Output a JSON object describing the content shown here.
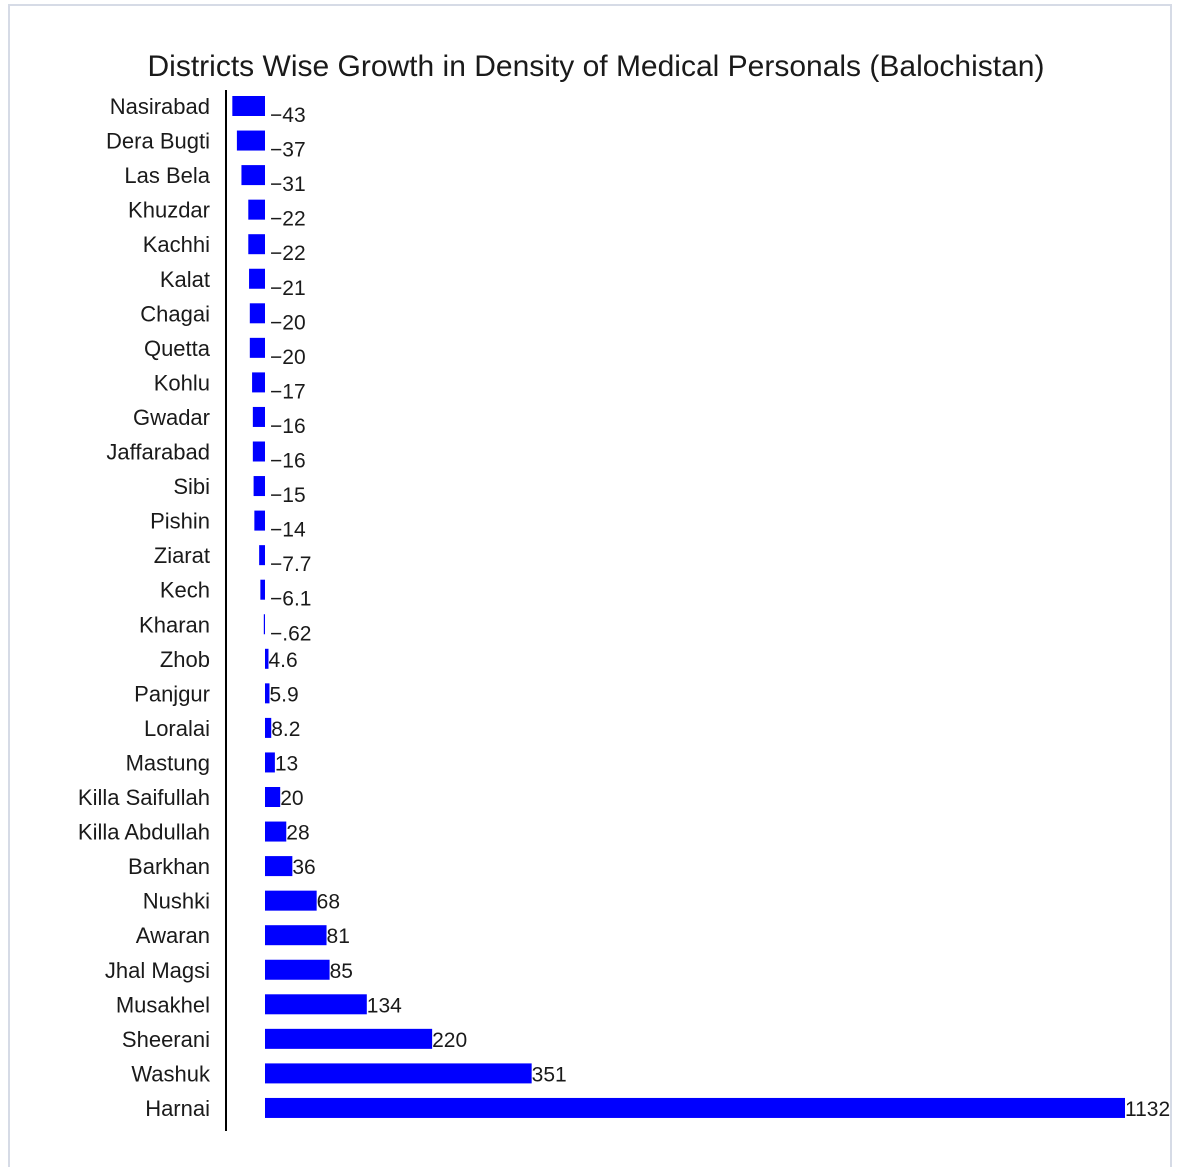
{
  "chart_data": {
    "type": "bar",
    "orientation": "horizontal",
    "title": "Districts Wise Growth in Density of Medical Personals (Balochistan)",
    "xlabel": "",
    "ylabel": "",
    "grid": false,
    "legend": "none",
    "bar_color": "#0000ff",
    "xlim": [
      -43,
      1132
    ],
    "categories": [
      "Nasirabad",
      "Dera Bugti",
      "Las Bela",
      "Khuzdar",
      "Kachhi",
      "Kalat",
      "Chagai",
      "Quetta",
      "Kohlu",
      "Gwadar",
      "Jaffarabad",
      "Sibi",
      "Pishin",
      "Ziarat",
      "Kech",
      "Kharan",
      "Zhob",
      "Panjgur",
      "Loralai",
      "Mastung",
      "Killa Saifullah",
      "Killa Abdullah",
      "Barkhan",
      "Nushki",
      "Awaran",
      "Jhal Magsi",
      "Musakhel",
      "Sheerani",
      "Washuk",
      "Harnai"
    ],
    "values": [
      -43,
      -37,
      -31,
      -22,
      -22,
      -21,
      -20,
      -20,
      -17,
      -16,
      -16,
      -15,
      -14,
      -7.7,
      -6.1,
      -0.62,
      4.6,
      5.9,
      8.2,
      13,
      20,
      28,
      36,
      68,
      81,
      85,
      134,
      220,
      351,
      1132
    ],
    "labels": [
      "−43",
      "−37",
      "−31",
      "−22",
      "−22",
      "−21",
      "−20",
      "−20",
      "−17",
      "−16",
      "−16",
      "−15",
      "−14",
      "−7.7",
      "−6.1",
      "−.62",
      "4.6",
      "5.9",
      "8.2",
      "13",
      "20",
      "28",
      "36",
      "68",
      "81",
      "85",
      "134",
      "220",
      "351",
      "1132"
    ]
  }
}
